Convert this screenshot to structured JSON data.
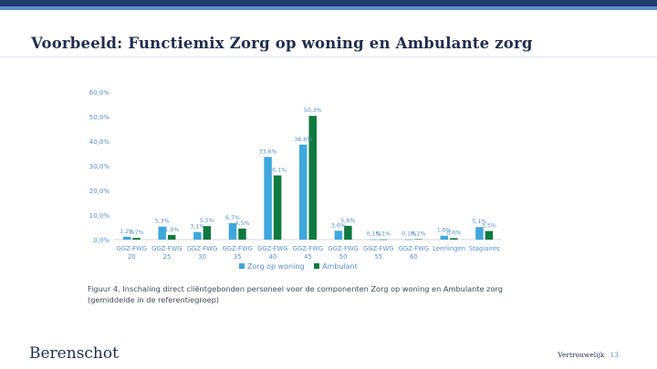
{
  "header": {
    "title": "Voorbeeld: Functiemix Zorg op woning en Ambulante zorg"
  },
  "figure": {
    "caption_line1": "Figuur 4. Inschaling direct cliëntgebonden personeel voor de componenten Zorg op woning en Ambulante zorg",
    "caption_line2": "(gemiddelde in de referentiegroep)"
  },
  "chart_data": {
    "type": "bar",
    "title": "",
    "xlabel": "",
    "ylabel": "",
    "ylim": [
      0,
      60
    ],
    "yticks": [
      0,
      10,
      20,
      30,
      40,
      50,
      60
    ],
    "ytick_labels": [
      "0,0%",
      "10,0%",
      "20,0%",
      "30,0%",
      "40,0%",
      "50,0%",
      "60,0%"
    ],
    "categories": [
      [
        "GGZ-FWG",
        "20"
      ],
      [
        "GGZ-FWG",
        "25"
      ],
      [
        "GGZ-FWG",
        "30"
      ],
      [
        "GGZ-FWG",
        "35"
      ],
      [
        "GGZ-FWG",
        "40"
      ],
      [
        "GGZ-FWG",
        "45"
      ],
      [
        "GGZ-FWG",
        "50"
      ],
      [
        "GGZ-FWG",
        "55"
      ],
      [
        "GGZ-FWG",
        "60"
      ],
      [
        "Leerlingen"
      ],
      [
        "Stagiaires"
      ]
    ],
    "series": [
      {
        "name": "Zorg op woning",
        "color": "#3fa7dc",
        "values": [
          1.2,
          5.3,
          3.1,
          6.7,
          33.6,
          38.6,
          3.6,
          0.1,
          0.1,
          1.6,
          5.1
        ],
        "labels": [
          "1,2%",
          "5,3%",
          "3,1%",
          "6,7%",
          "33,6%",
          "38,6%",
          "3,6%",
          "0,1%",
          "0,1%",
          "1,6%",
          "5,1%"
        ]
      },
      {
        "name": "Ambulant",
        "color": "#0f7a3f",
        "values": [
          0.7,
          1.9,
          5.5,
          4.5,
          26.1,
          50.3,
          5.6,
          0.1,
          0.2,
          0.6,
          3.5
        ],
        "labels": [
          "0,7%",
          "1,9%",
          "5,5%",
          "4,5%",
          "26,1%",
          "50,3%",
          "5,6%",
          "0,1%",
          "0,2%",
          "0,6%",
          "3,5%"
        ]
      }
    ],
    "legend_position": "bottom-center",
    "grid": false
  },
  "footer": {
    "brand": "Berenschot",
    "classification": "Vertrouwelijk",
    "page": "13"
  }
}
